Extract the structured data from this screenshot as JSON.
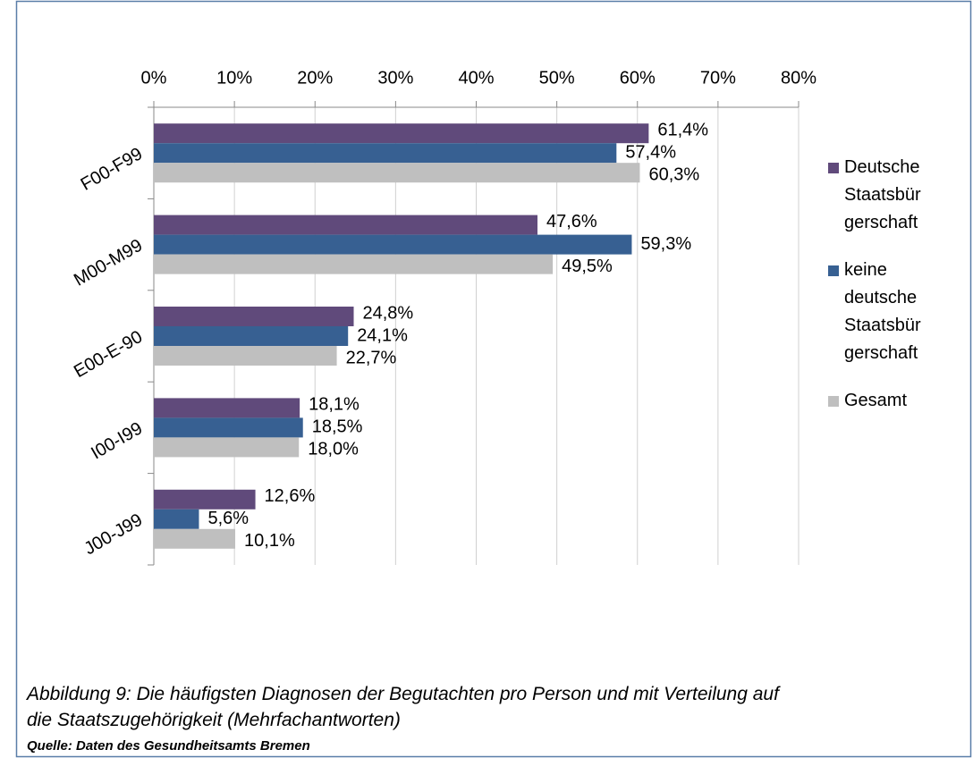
{
  "chart_data": {
    "type": "hbar",
    "categories": [
      "F00-F99",
      "M00-M99",
      "E00-E-90",
      "I00-I99",
      "J00-J99"
    ],
    "series": [
      {
        "name": "Deutsche Staatsbürgerschaft",
        "color": "#604a7b",
        "values": [
          61.4,
          47.6,
          24.8,
          18.1,
          12.6
        ],
        "value_labels": [
          "61,4%",
          "47,6%",
          "24,8%",
          "18,1%",
          "12,6%"
        ]
      },
      {
        "name": "keine deutsche Staatsbürgerschaft",
        "color": "#376092",
        "values": [
          57.4,
          59.3,
          24.1,
          18.5,
          5.6
        ],
        "value_labels": [
          "57,4%",
          "59,3%",
          "24,1%",
          "18,5%",
          "5,6%"
        ]
      },
      {
        "name": "Gesamt",
        "color": "#bfbfbf",
        "values": [
          60.3,
          49.5,
          22.7,
          18.0,
          10.1
        ],
        "value_labels": [
          "60,3%",
          "49,5%",
          "22,7%",
          "18,0%",
          "10,1%"
        ]
      }
    ],
    "xlim": [
      0,
      80
    ],
    "xticks": [
      {
        "value": 0,
        "label": "0%"
      },
      {
        "value": 10,
        "label": "10%"
      },
      {
        "value": 20,
        "label": "20%"
      },
      {
        "value": 30,
        "label": "30%"
      },
      {
        "value": 40,
        "label": "40%"
      },
      {
        "value": 50,
        "label": "50%"
      },
      {
        "value": 60,
        "label": "60%"
      },
      {
        "value": 70,
        "label": "70%"
      },
      {
        "value": 80,
        "label": "80%"
      }
    ],
    "grid": true,
    "legend": "right",
    "caption": "Abbildung 9: Die häufigsten Diagnosen der Begutachten pro Person und mit Verteilung auf die Staatszugehörigkeit (Mehrfachantworten)",
    "source": "Quelle: Daten des Gesundheitsamts Bremen"
  }
}
